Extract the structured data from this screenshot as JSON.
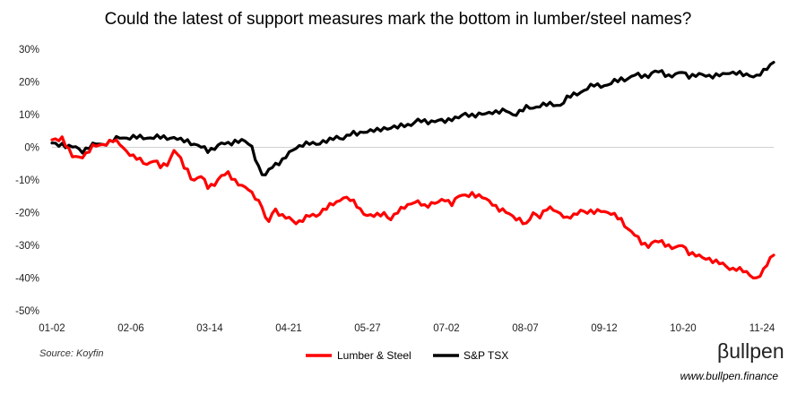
{
  "chart_data": {
    "type": "line",
    "title": "Could the latest of support measures mark the bottom in lumber/steel names?",
    "xlabel": "",
    "ylabel": "",
    "ylim": [
      -50,
      30
    ],
    "y_ticks": [
      30,
      20,
      10,
      0,
      -10,
      -20,
      -30,
      -40,
      -50
    ],
    "y_tick_labels": [
      "30%",
      "20%",
      "10%",
      "0%",
      "-10%",
      "-20%",
      "-30%",
      "-40%",
      "-50%"
    ],
    "x_tick_labels": [
      "01-02",
      "02-06",
      "03-14",
      "04-21",
      "05-27",
      "07-02",
      "08-07",
      "09-12",
      "10-20",
      "11-24"
    ],
    "grid": false,
    "legend_position": "bottom-center",
    "series": [
      {
        "name": "Lumber & Steel",
        "color": "#ff0000",
        "keypoints": [
          [
            0,
            2
          ],
          [
            3,
            3
          ],
          [
            5,
            -1
          ],
          [
            6,
            -3
          ],
          [
            8,
            -3
          ],
          [
            10,
            -2
          ],
          [
            12,
            0
          ],
          [
            15,
            1
          ],
          [
            18,
            2
          ],
          [
            20,
            1
          ],
          [
            22,
            -1
          ],
          [
            24,
            -3
          ],
          [
            26,
            -4
          ],
          [
            28,
            -5
          ],
          [
            30,
            -4
          ],
          [
            32,
            -6
          ],
          [
            34,
            -5
          ],
          [
            35,
            -3
          ],
          [
            36,
            -1
          ],
          [
            37,
            -2
          ],
          [
            38,
            -4
          ],
          [
            39,
            -6
          ],
          [
            40,
            -7
          ],
          [
            41,
            -9
          ],
          [
            42,
            -10
          ],
          [
            44,
            -9
          ],
          [
            46,
            -12
          ],
          [
            48,
            -11
          ],
          [
            50,
            -9
          ],
          [
            52,
            -8
          ],
          [
            54,
            -10
          ],
          [
            56,
            -12
          ],
          [
            58,
            -13
          ],
          [
            60,
            -15
          ],
          [
            62,
            -18
          ],
          [
            63,
            -22
          ],
          [
            64,
            -23
          ],
          [
            65,
            -20
          ],
          [
            66,
            -19
          ],
          [
            68,
            -21
          ],
          [
            70,
            -22
          ],
          [
            72,
            -23
          ],
          [
            74,
            -22
          ],
          [
            76,
            -21
          ],
          [
            78,
            -21
          ],
          [
            80,
            -19
          ],
          [
            82,
            -18
          ],
          [
            84,
            -17
          ],
          [
            86,
            -15
          ],
          [
            88,
            -16
          ],
          [
            90,
            -18
          ],
          [
            92,
            -20
          ],
          [
            94,
            -21
          ],
          [
            96,
            -21
          ],
          [
            98,
            -20
          ],
          [
            100,
            -22
          ],
          [
            102,
            -20
          ],
          [
            104,
            -18
          ],
          [
            106,
            -17
          ],
          [
            108,
            -17
          ],
          [
            110,
            -18
          ],
          [
            112,
            -17
          ],
          [
            114,
            -17
          ],
          [
            116,
            -16
          ],
          [
            118,
            -17
          ],
          [
            120,
            -15
          ],
          [
            122,
            -15
          ],
          [
            124,
            -14
          ],
          [
            126,
            -15
          ],
          [
            128,
            -16
          ],
          [
            130,
            -17
          ],
          [
            132,
            -19
          ],
          [
            134,
            -20
          ],
          [
            136,
            -21
          ],
          [
            138,
            -22
          ],
          [
            140,
            -24
          ],
          [
            142,
            -20
          ],
          [
            144,
            -21
          ],
          [
            146,
            -19
          ],
          [
            148,
            -19
          ],
          [
            150,
            -20
          ],
          [
            152,
            -22
          ],
          [
            154,
            -21
          ],
          [
            156,
            -19
          ],
          [
            158,
            -20
          ],
          [
            160,
            -20
          ],
          [
            162,
            -19
          ],
          [
            164,
            -20
          ],
          [
            166,
            -21
          ],
          [
            168,
            -22
          ],
          [
            170,
            -25
          ],
          [
            172,
            -27
          ],
          [
            174,
            -29
          ],
          [
            176,
            -30
          ],
          [
            178,
            -29
          ],
          [
            180,
            -29
          ],
          [
            182,
            -30
          ],
          [
            184,
            -31
          ],
          [
            186,
            -30
          ],
          [
            188,
            -32
          ],
          [
            190,
            -33
          ],
          [
            192,
            -34
          ],
          [
            194,
            -34
          ],
          [
            196,
            -35
          ],
          [
            198,
            -36
          ],
          [
            200,
            -37
          ],
          [
            202,
            -37
          ],
          [
            204,
            -38
          ],
          [
            206,
            -39
          ],
          [
            208,
            -40
          ],
          [
            210,
            -38
          ],
          [
            211,
            -36
          ],
          [
            212,
            -34
          ],
          [
            213,
            -33
          ]
        ]
      },
      {
        "name": "S&P TSX",
        "color": "#000000",
        "keypoints": [
          [
            0,
            1
          ],
          [
            3,
            1
          ],
          [
            5,
            0
          ],
          [
            7,
            0
          ],
          [
            9,
            -1
          ],
          [
            11,
            0
          ],
          [
            13,
            1
          ],
          [
            15,
            1
          ],
          [
            18,
            2
          ],
          [
            20,
            3
          ],
          [
            22,
            3
          ],
          [
            24,
            3
          ],
          [
            26,
            3
          ],
          [
            28,
            3
          ],
          [
            30,
            3
          ],
          [
            32,
            3
          ],
          [
            34,
            3
          ],
          [
            36,
            3
          ],
          [
            38,
            2
          ],
          [
            40,
            2
          ],
          [
            42,
            1
          ],
          [
            44,
            0
          ],
          [
            46,
            -1
          ],
          [
            48,
            0
          ],
          [
            50,
            1
          ],
          [
            52,
            1
          ],
          [
            54,
            2
          ],
          [
            56,
            2
          ],
          [
            58,
            1
          ],
          [
            59,
            0
          ],
          [
            60,
            -3
          ],
          [
            61,
            -6
          ],
          [
            62,
            -8
          ],
          [
            63,
            -9
          ],
          [
            64,
            -7
          ],
          [
            66,
            -5
          ],
          [
            68,
            -4
          ],
          [
            70,
            -2
          ],
          [
            72,
            0
          ],
          [
            74,
            1
          ],
          [
            76,
            1
          ],
          [
            78,
            1
          ],
          [
            80,
            2
          ],
          [
            82,
            2
          ],
          [
            84,
            3
          ],
          [
            86,
            3
          ],
          [
            88,
            4
          ],
          [
            90,
            4
          ],
          [
            92,
            5
          ],
          [
            94,
            5
          ],
          [
            96,
            5
          ],
          [
            98,
            6
          ],
          [
            100,
            6
          ],
          [
            102,
            6
          ],
          [
            104,
            7
          ],
          [
            106,
            7
          ],
          [
            108,
            8
          ],
          [
            110,
            8
          ],
          [
            112,
            8
          ],
          [
            114,
            8
          ],
          [
            116,
            8
          ],
          [
            118,
            9
          ],
          [
            120,
            9
          ],
          [
            122,
            10
          ],
          [
            124,
            10
          ],
          [
            126,
            10
          ],
          [
            128,
            10
          ],
          [
            130,
            11
          ],
          [
            132,
            11
          ],
          [
            134,
            11
          ],
          [
            136,
            10
          ],
          [
            138,
            11
          ],
          [
            140,
            12
          ],
          [
            142,
            12
          ],
          [
            144,
            13
          ],
          [
            146,
            13
          ],
          [
            148,
            13
          ],
          [
            150,
            13
          ],
          [
            152,
            15
          ],
          [
            154,
            16
          ],
          [
            156,
            17
          ],
          [
            158,
            18
          ],
          [
            160,
            19
          ],
          [
            162,
            19
          ],
          [
            164,
            19
          ],
          [
            166,
            20
          ],
          [
            168,
            21
          ],
          [
            170,
            21
          ],
          [
            172,
            22
          ],
          [
            174,
            22
          ],
          [
            176,
            22
          ],
          [
            178,
            23
          ],
          [
            180,
            23
          ],
          [
            182,
            22
          ],
          [
            184,
            22
          ],
          [
            186,
            23
          ],
          [
            188,
            22
          ],
          [
            190,
            22
          ],
          [
            192,
            22
          ],
          [
            194,
            22
          ],
          [
            196,
            22
          ],
          [
            198,
            22
          ],
          [
            200,
            23
          ],
          [
            202,
            23
          ],
          [
            204,
            22
          ],
          [
            206,
            22
          ],
          [
            208,
            22
          ],
          [
            210,
            23
          ],
          [
            211,
            24
          ],
          [
            212,
            25
          ],
          [
            213,
            26
          ]
        ]
      }
    ],
    "source": "Source: Koyfin"
  },
  "brand": {
    "name": "Bullpen",
    "logo_text": "βullpen",
    "url": "www.bullpen.finance"
  }
}
